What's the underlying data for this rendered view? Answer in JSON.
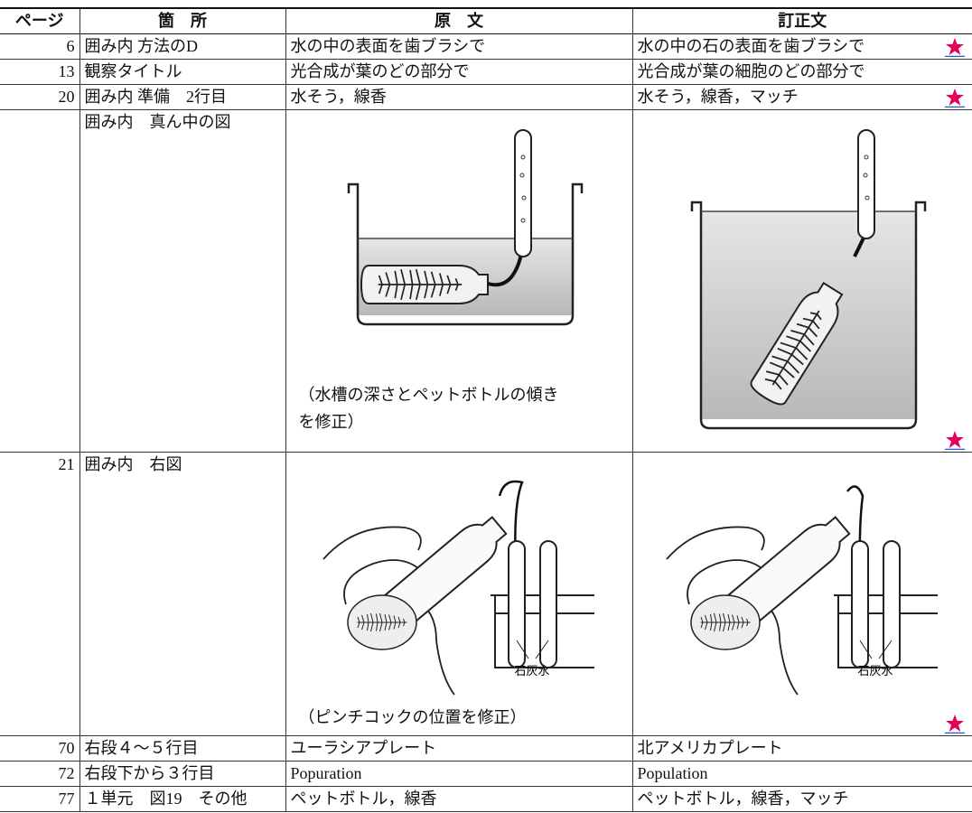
{
  "header": {
    "page": "ページ",
    "location": "箇　所",
    "original": "原　文",
    "corrected": "訂正文"
  },
  "rows": [
    {
      "page": "6",
      "location": "囲み内 方法のD",
      "original": "水の中の表面を歯ブラシで",
      "corrected": "水の中の石の表面を歯ブラシで"
    },
    {
      "page": "13",
      "location": "観察タイトル",
      "original": "光合成が葉のどの部分で",
      "corrected": "光合成が葉の細胞のどの部分で"
    },
    {
      "page": "20",
      "location": "囲み内 準備　2行目",
      "original": "水そう，線香",
      "corrected": "水そう，線香，マッチ"
    },
    {
      "location": "囲み内　真ん中の図",
      "original_note": "（水槽の深さとペットボトルの傾きを修正）"
    },
    {
      "page": "21",
      "location": "囲み内　右図",
      "original_figure_label": "石灰水",
      "original_note": "（ピンチコックの位置を修正）",
      "corrected_figure_label": "石灰水"
    },
    {
      "page": "70",
      "location": "右段４～５行目",
      "original": "ユーラシアプレート",
      "corrected": "北アメリカプレート"
    },
    {
      "page": "72",
      "location": "右段下から３行目",
      "original": "Popuration",
      "corrected": "Population"
    },
    {
      "page": "77",
      "location": "１単元　図19　その他",
      "original": "ペットボトル，線香",
      "corrected": "ペットボトル，線香，マッチ"
    }
  ]
}
